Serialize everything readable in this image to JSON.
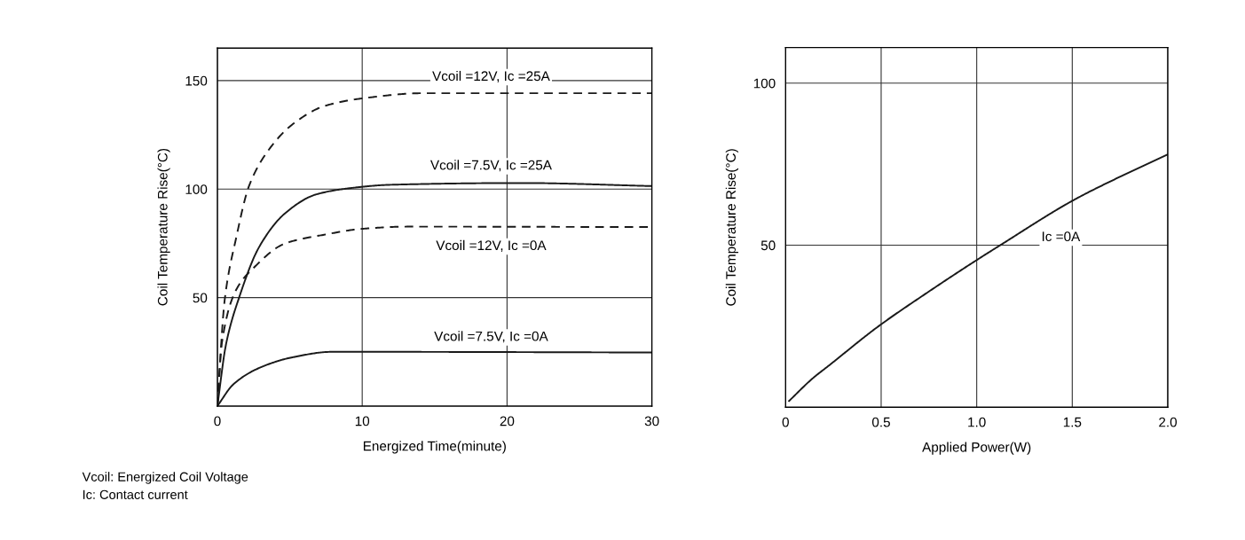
{
  "chart_data": [
    {
      "type": "line",
      "xlabel": "Energized Time(minute)",
      "ylabel": "Coil Temperature Rise(°C)",
      "xlim": [
        0,
        30
      ],
      "ylim": [
        0,
        165
      ],
      "xticks": [
        0,
        10,
        20,
        30
      ],
      "yticks": [
        50,
        100,
        150
      ],
      "grid": true,
      "marker": "none",
      "series": [
        {
          "name": "Vcoil =12V, Ic =25A",
          "color": "#1a1a1a",
          "line_style": "dashed",
          "x": [
            0,
            0.5,
            1.3,
            2.2,
            3.6,
            5.2,
            7.4,
            10,
            14.2,
            30
          ],
          "values": [
            0,
            48.7,
            77.6,
            101.7,
            118.6,
            129.9,
            138.3,
            141.8,
            144.2,
            144.2
          ]
        },
        {
          "name": "Vcoil =7.5V, Ic =25A",
          "color": "#1a1a1a",
          "line_style": "solid",
          "x": [
            0,
            0.6,
            1.5,
            2.9,
            4.7,
            6.8,
            9,
            12,
            21,
            30
          ],
          "values": [
            0,
            28.6,
            50,
            73.5,
            89,
            97.5,
            100.3,
            102,
            102.8,
            101.4
          ]
        },
        {
          "name": "Vcoil =12V, Ic =0A",
          "color": "#1a1a1a",
          "line_style": "dashed",
          "x": [
            0,
            0.3,
            1.3,
            2.4,
            4.7,
            7.4,
            10,
            13.1,
            30
          ],
          "values": [
            0,
            28.6,
            53.6,
            63,
            75,
            79,
            81.7,
            82.7,
            82.5
          ]
        },
        {
          "name": "Vcoil =7.5V, Ic =0A",
          "color": "#1a1a1a",
          "line_style": "solid",
          "x": [
            0,
            1.1,
            2.9,
            5.2,
            7.9,
            10,
            30
          ],
          "values": [
            0,
            10,
            17.6,
            22.5,
            25,
            25,
            24.7
          ]
        }
      ],
      "annotations": [
        "Vcoil: Energized Coil Voltage",
        "Ic: Contact current"
      ]
    },
    {
      "type": "line",
      "xlabel": "Applied Power(W)",
      "ylabel": "Coil Temperature Rise(°C)",
      "xlim": [
        0,
        2.0
      ],
      "ylim": [
        0,
        111
      ],
      "xticks": [
        0,
        {
          "value": 0.5,
          "label": "0.5"
        },
        {
          "value": 1.0,
          "label": "1.0"
        },
        {
          "value": 1.5,
          "label": "1.5"
        },
        {
          "value": 2.0,
          "label": "2.0"
        }
      ],
      "yticks": [
        50,
        100
      ],
      "grid": true,
      "marker": "none",
      "series": [
        {
          "name": "Ic =0A",
          "color": "#1a1a1a",
          "line_style": "solid",
          "x": [
            0.018,
            0.14,
            0.23,
            0.48,
            0.74,
            1.0,
            1.11,
            1.51,
            1.76,
            2.0
          ],
          "values": [
            1.9,
            8.8,
            13,
            24.7,
            35.3,
            45.4,
            49.5,
            64,
            71.4,
            78
          ]
        }
      ]
    }
  ]
}
